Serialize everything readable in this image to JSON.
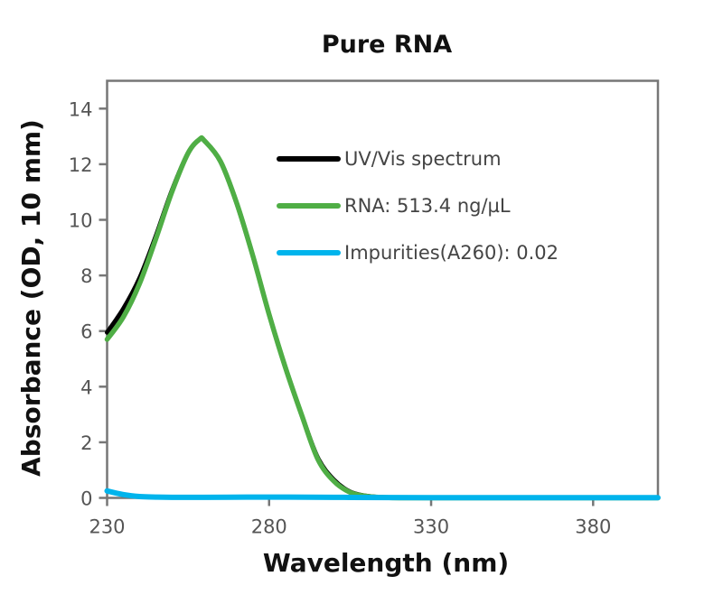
{
  "chart_data": {
    "type": "line",
    "title": "Pure RNA",
    "xlabel": "Wavelength (nm)",
    "ylabel": "Absorbance (OD, 10 mm)",
    "xlim": [
      230,
      400
    ],
    "ylim": [
      0,
      15
    ],
    "xticks": [
      230,
      280,
      330,
      380
    ],
    "yticks": [
      0,
      2,
      4,
      6,
      8,
      10,
      12,
      14
    ],
    "grid": false,
    "legend_position": "top-right",
    "series": [
      {
        "name": "UV/Vis spectrum",
        "color": "#000000",
        "x": [
          230,
          235,
          240,
          245,
          250,
          255,
          258.6,
          260,
          265,
          270,
          275,
          280,
          285,
          290,
          295,
          300,
          305,
          310,
          315,
          320,
          330,
          400
        ],
        "y": [
          5.95,
          6.8,
          7.9,
          9.4,
          11.05,
          12.4,
          12.9,
          12.85,
          12.1,
          10.6,
          8.7,
          6.6,
          4.7,
          3.0,
          1.45,
          0.65,
          0.22,
          0.07,
          0.02,
          0.01,
          0.0,
          0.0
        ]
      },
      {
        "name": "RNA: 513.4 ng/µL",
        "color": "#4fae45",
        "x": [
          230,
          235,
          240,
          245,
          250,
          255,
          258.6,
          260,
          265,
          270,
          275,
          280,
          285,
          290,
          295,
          300,
          305,
          310,
          315,
          320,
          330,
          400
        ],
        "y": [
          5.7,
          6.5,
          7.7,
          9.3,
          11.0,
          12.4,
          12.9,
          12.85,
          12.1,
          10.6,
          8.7,
          6.6,
          4.7,
          3.0,
          1.4,
          0.6,
          0.2,
          0.06,
          0.02,
          0.0,
          0.0,
          0.0
        ]
      },
      {
        "name": "Impurities(A260): 0.02",
        "color": "#00b4ec",
        "x": [
          230,
          235,
          240,
          245,
          250,
          260,
          280,
          300,
          330,
          400
        ],
        "y": [
          0.25,
          0.12,
          0.05,
          0.03,
          0.02,
          0.02,
          0.03,
          0.02,
          0.01,
          0.01
        ]
      }
    ]
  }
}
